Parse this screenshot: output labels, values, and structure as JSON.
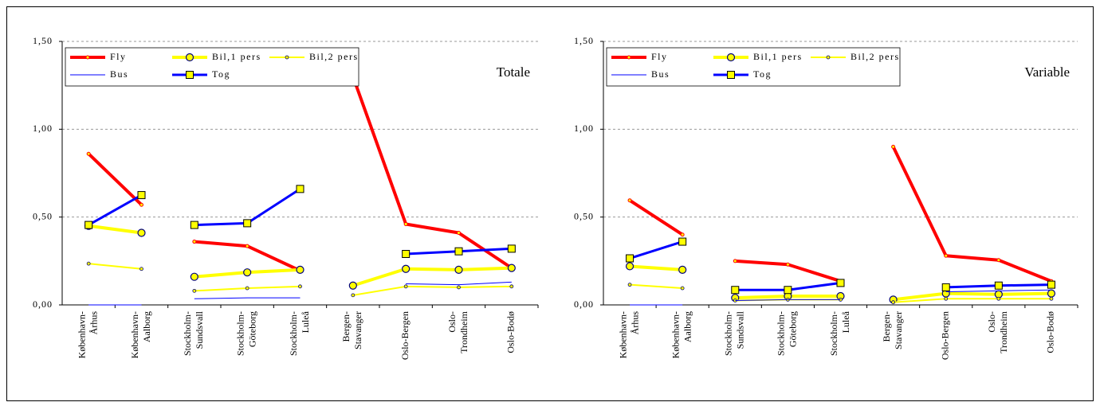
{
  "chart_data": [
    {
      "type": "line",
      "annotation": "Totale",
      "categories": [
        [
          "København-",
          "Århus"
        ],
        [
          "København-",
          "Aalborg"
        ],
        [
          "Stockholm-",
          "Sundsvall"
        ],
        [
          "Stockholm-",
          "Göteborg"
        ],
        [
          "Stockholm-",
          "Luleå"
        ],
        [
          "Bergen-",
          "Stavanger"
        ],
        [
          "Oslo-Bergen"
        ],
        [
          "Oslo-",
          "Trondheim"
        ],
        [
          "Oslo-Bodø"
        ]
      ],
      "breaks_after": [
        1,
        4
      ],
      "ylim": [
        0,
        1.5
      ],
      "yticks": [
        {
          "value": 0,
          "label": "0,00"
        },
        {
          "value": 0.5,
          "label": "0,50"
        },
        {
          "value": 1,
          "label": "1,00"
        },
        {
          "value": 1.5,
          "label": "1,50"
        }
      ],
      "grid": true,
      "legend": "top-left",
      "series": [
        {
          "name": "Fly",
          "color": "#ff0000",
          "width": 4,
          "marker": "dot",
          "values": [
            0.86,
            0.57,
            0.36,
            0.335,
            0.195,
            1.3,
            0.46,
            0.41,
            0.21
          ]
        },
        {
          "name": "Bil,1 pers",
          "color": "#ffff00",
          "width": 4,
          "marker": "circle",
          "values": [
            0.45,
            0.41,
            0.16,
            0.185,
            0.2,
            0.11,
            0.205,
            0.2,
            0.21
          ]
        },
        {
          "name": "Bil,2 pers",
          "color": "#ffff00",
          "width": 2,
          "marker": "small-circle",
          "values": [
            0.235,
            0.205,
            0.08,
            0.095,
            0.105,
            0.055,
            0.105,
            0.1,
            0.105
          ]
        },
        {
          "name": "Bus",
          "color": "#0000ff",
          "width": 1,
          "marker": "none",
          "values": [
            0,
            0,
            0.035,
            0.04,
            0.04,
            null,
            0.12,
            0.115,
            0.13
          ]
        },
        {
          "name": "Tog",
          "color": "#0000ff",
          "width": 3,
          "marker": "square",
          "values": [
            0.455,
            0.625,
            0.455,
            0.465,
            0.66,
            null,
            0.29,
            0.305,
            0.32
          ]
        }
      ]
    },
    {
      "type": "line",
      "annotation": "Variable",
      "categories": [
        [
          "København-",
          "Århus"
        ],
        [
          "København-",
          "Aalborg"
        ],
        [
          "Stockholm-",
          "Sundsvall"
        ],
        [
          "Stockholm-",
          "Göteborg"
        ],
        [
          "Stockholm-",
          "Luleå"
        ],
        [
          "Bergen-",
          "Stavanger"
        ],
        [
          "Oslo-Bergen"
        ],
        [
          "Oslo-",
          "Trondheim"
        ],
        [
          "Oslo-Bodø"
        ]
      ],
      "breaks_after": [
        1,
        4
      ],
      "ylim": [
        0,
        1.5
      ],
      "yticks": [
        {
          "value": 0,
          "label": "0,00"
        },
        {
          "value": 0.5,
          "label": "0,50"
        },
        {
          "value": 1,
          "label": "1,00"
        },
        {
          "value": 1.5,
          "label": "1,50"
        }
      ],
      "grid": true,
      "legend": "top-left",
      "series": [
        {
          "name": "Fly",
          "color": "#ff0000",
          "width": 4,
          "marker": "dot",
          "values": [
            0.595,
            0.4,
            0.25,
            0.23,
            0.135,
            0.9,
            0.28,
            0.255,
            0.135
          ]
        },
        {
          "name": "Bil,1 pers",
          "color": "#ffff00",
          "width": 4,
          "marker": "circle",
          "values": [
            0.22,
            0.2,
            0.04,
            0.05,
            0.05,
            0.03,
            0.065,
            0.06,
            0.065
          ]
        },
        {
          "name": "Bil,2 pers",
          "color": "#ffff00",
          "width": 2,
          "marker": "small-circle",
          "values": [
            0.115,
            0.095,
            0.025,
            0.03,
            0.03,
            0.015,
            0.035,
            0.035,
            0.035
          ]
        },
        {
          "name": "Bus",
          "color": "#0000ff",
          "width": 1,
          "marker": "none",
          "values": [
            0,
            0,
            0.025,
            0.03,
            0.03,
            null,
            0.075,
            0.08,
            0.085
          ]
        },
        {
          "name": "Tog",
          "color": "#0000ff",
          "width": 3,
          "marker": "square",
          "values": [
            0.265,
            0.36,
            0.085,
            0.085,
            0.125,
            null,
            0.1,
            0.11,
            0.115
          ]
        }
      ]
    }
  ]
}
